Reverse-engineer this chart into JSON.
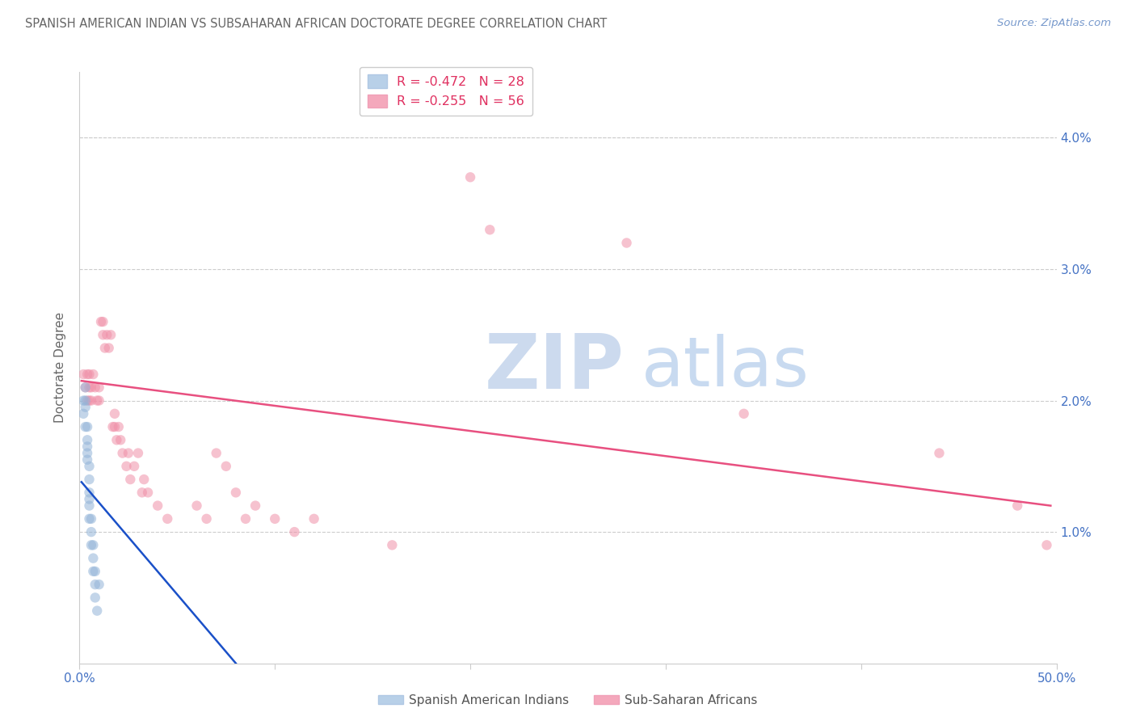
{
  "title": "SPANISH AMERICAN INDIAN VS SUBSAHARAN AFRICAN DOCTORATE DEGREE CORRELATION CHART",
  "source": "Source: ZipAtlas.com",
  "ylabel": "Doctorate Degree",
  "ytick_labels": [
    "1.0%",
    "2.0%",
    "3.0%",
    "4.0%"
  ],
  "ytick_values": [
    0.01,
    0.02,
    0.03,
    0.04
  ],
  "xlim": [
    0.0,
    0.5
  ],
  "ylim": [
    0.0,
    0.045
  ],
  "legend_title_blue": "Spanish American Indians",
  "legend_title_pink": "Sub-Saharan Africans",
  "background_color": "#ffffff",
  "scatter_alpha": 0.55,
  "scatter_size": 80,
  "title_color": "#666666",
  "axis_color": "#4472c4",
  "grid_color": "#cccccc",
  "blue_color": "#92b4d8",
  "pink_color": "#f090a8",
  "blue_line_color": "#1a50c8",
  "pink_line_color": "#e85080",
  "blue_x": [
    0.002,
    0.002,
    0.003,
    0.003,
    0.003,
    0.003,
    0.004,
    0.004,
    0.004,
    0.004,
    0.004,
    0.005,
    0.005,
    0.005,
    0.005,
    0.005,
    0.005,
    0.006,
    0.006,
    0.006,
    0.007,
    0.007,
    0.007,
    0.008,
    0.008,
    0.008,
    0.009,
    0.01
  ],
  "blue_y": [
    0.019,
    0.02,
    0.021,
    0.018,
    0.0195,
    0.02,
    0.0165,
    0.017,
    0.018,
    0.0155,
    0.016,
    0.014,
    0.015,
    0.0125,
    0.013,
    0.011,
    0.012,
    0.01,
    0.011,
    0.009,
    0.008,
    0.009,
    0.007,
    0.006,
    0.007,
    0.005,
    0.004,
    0.006
  ],
  "pink_x": [
    0.002,
    0.003,
    0.004,
    0.004,
    0.005,
    0.005,
    0.005,
    0.006,
    0.006,
    0.007,
    0.008,
    0.009,
    0.01,
    0.01,
    0.011,
    0.012,
    0.012,
    0.013,
    0.014,
    0.015,
    0.016,
    0.017,
    0.018,
    0.018,
    0.019,
    0.02,
    0.021,
    0.022,
    0.024,
    0.025,
    0.026,
    0.028,
    0.03,
    0.032,
    0.033,
    0.035,
    0.04,
    0.045,
    0.06,
    0.065,
    0.07,
    0.075,
    0.08,
    0.085,
    0.09,
    0.1,
    0.11,
    0.12,
    0.16,
    0.2,
    0.21,
    0.28,
    0.34,
    0.44,
    0.48,
    0.495
  ],
  "pink_y": [
    0.022,
    0.021,
    0.022,
    0.02,
    0.022,
    0.021,
    0.02,
    0.021,
    0.02,
    0.022,
    0.021,
    0.02,
    0.021,
    0.02,
    0.026,
    0.025,
    0.026,
    0.024,
    0.025,
    0.024,
    0.025,
    0.018,
    0.019,
    0.018,
    0.017,
    0.018,
    0.017,
    0.016,
    0.015,
    0.016,
    0.014,
    0.015,
    0.016,
    0.013,
    0.014,
    0.013,
    0.012,
    0.011,
    0.012,
    0.011,
    0.016,
    0.015,
    0.013,
    0.011,
    0.012,
    0.011,
    0.01,
    0.011,
    0.009,
    0.037,
    0.033,
    0.032,
    0.019,
    0.016,
    0.012,
    0.009
  ],
  "blue_line_x": [
    0.001,
    0.08
  ],
  "blue_line_y": [
    0.0138,
    0.0
  ],
  "pink_line_x": [
    0.001,
    0.497
  ],
  "pink_line_y": [
    0.0215,
    0.012
  ]
}
